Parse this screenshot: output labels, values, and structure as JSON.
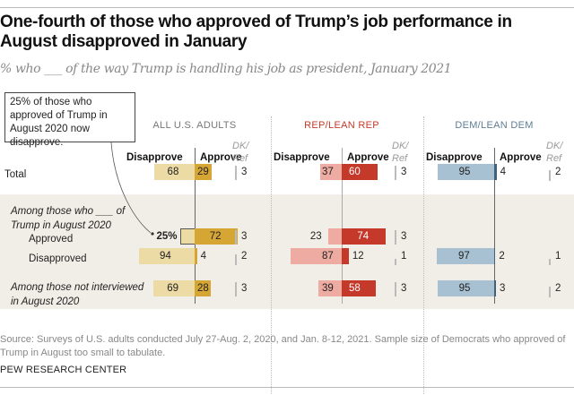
{
  "header": {
    "title": "One-fourth of those who approved of Trump’s job performance in August disapproved in January",
    "subtitle": "% who ___ of the way Trump is handling his job as president, January 2021"
  },
  "callout": "25% of those who approved of Trump in August 2020 now disapprove.",
  "footer": {
    "source": "Source: Surveys of U.S. adults conducted July 27-Aug. 2, 2020, and Jan. 8-12, 2021. Sample size of Democrats who approved of Trump in August too small to tabulate.",
    "credit": "PEW RESEARCH CENTER"
  },
  "colors": {
    "all_disapprove": "#ecdba5",
    "all_approve": "#d6a634",
    "rep_disapprove": "#eeaba2",
    "rep_approve": "#c5392a",
    "dem_disapprove": "#a8c1d2",
    "dem_approve": "#41617b",
    "rep_label": "#c5392a",
    "dem_label": "#5d7d94",
    "all_label": "#777777",
    "shade": "#f0eee6"
  },
  "chart_data": {
    "type": "bar",
    "title": "One-fourth of those who approved of Trump’s job performance in August disapproved in January",
    "subtitle": "% who ___ of the way Trump is handling his job as president, January 2021",
    "column_headers": {
      "disapprove": "Disapprove",
      "approve": "Approve",
      "dk": "DK/ Ref"
    },
    "groups": [
      "ALL U.S. ADULTS",
      "REP/LEAN REP",
      "DEM/LEAN DEM"
    ],
    "section_labels": [
      "Among those who ___ of Trump in August 2020",
      "Among those not interviewed in August 2020"
    ],
    "rows": [
      {
        "label": "Total",
        "values": [
          {
            "disapprove": 68,
            "approve": 29,
            "dk": 3
          },
          {
            "disapprove": 37,
            "approve": 60,
            "dk": 3
          },
          {
            "disapprove": 95,
            "approve": 4,
            "dk": 2
          }
        ]
      },
      {
        "label": "Approved",
        "values": [
          {
            "disapprove": 25,
            "approve": 72,
            "dk": 3,
            "disapprove_label": "25%"
          },
          {
            "disapprove": 23,
            "approve": 74,
            "dk": 3
          },
          null
        ]
      },
      {
        "label": "Disapproved",
        "values": [
          {
            "disapprove": 94,
            "approve": 4,
            "dk": 2
          },
          {
            "disapprove": 87,
            "approve": 12,
            "dk": 1
          },
          {
            "disapprove": 97,
            "approve": 2,
            "dk": 1
          }
        ]
      },
      {
        "label": "Among those not interviewed in August 2020",
        "values": [
          {
            "disapprove": 69,
            "approve": 28,
            "dk": 3
          },
          {
            "disapprove": 39,
            "approve": 58,
            "dk": 3
          },
          {
            "disapprove": 95,
            "approve": 3,
            "dk": 2
          }
        ]
      }
    ],
    "xlim": [
      0,
      100
    ]
  }
}
